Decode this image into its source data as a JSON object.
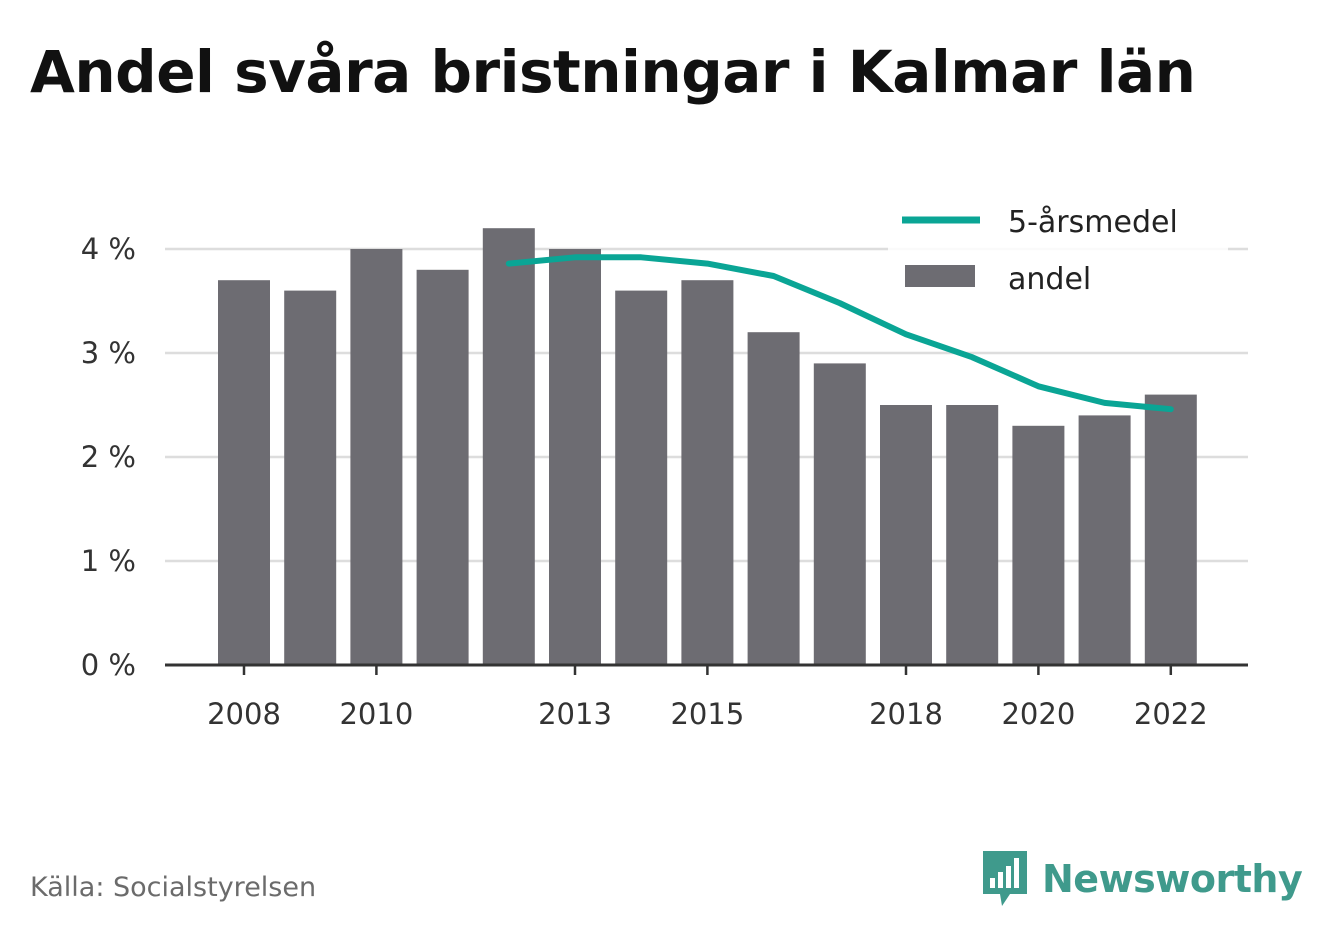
{
  "title": "Andel svåra bristningar i Kalmar län",
  "source": "Källa: Socialstyrelsen",
  "brand": {
    "name": "Newsworthy",
    "logo_icon": "bar-chart-speech-bubble-icon",
    "color": "#3f9a8c"
  },
  "chart_data": {
    "type": "bar",
    "categories": [
      2008,
      2009,
      2010,
      2011,
      2012,
      2013,
      2014,
      2015,
      2016,
      2017,
      2018,
      2019,
      2020,
      2021,
      2022
    ],
    "x_tick_labels": [
      "2008",
      "2010",
      "2013",
      "2015",
      "2018",
      "2020",
      "2022"
    ],
    "y_tick_labels": [
      "0 %",
      "1 %",
      "2 %",
      "3 %",
      "4 %"
    ],
    "y_ticks": [
      0,
      1,
      2,
      3,
      4
    ],
    "ylim": [
      0,
      4.3
    ],
    "grid": true,
    "legend_position": "top-right",
    "series": [
      {
        "name": "andel",
        "type": "bar",
        "color": "#6d6c72",
        "values": [
          3.7,
          3.6,
          4.0,
          3.8,
          4.2,
          4.0,
          3.6,
          3.7,
          3.2,
          2.9,
          2.5,
          2.5,
          2.3,
          2.4,
          2.6
        ]
      },
      {
        "name": "5-årsmedel",
        "type": "line",
        "color": "#0aa595",
        "values": [
          null,
          null,
          null,
          null,
          3.86,
          3.92,
          3.92,
          3.86,
          3.74,
          3.48,
          3.18,
          2.96,
          2.68,
          2.52,
          2.46
        ]
      }
    ]
  }
}
